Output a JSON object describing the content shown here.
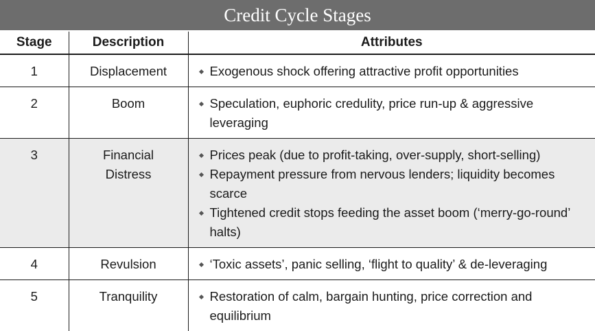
{
  "title": "Credit Cycle Stages",
  "headers": {
    "stage": "Stage",
    "description": "Description",
    "attributes": "Attributes"
  },
  "rows": [
    {
      "stage": "1",
      "description": [
        "Displacement"
      ],
      "shaded": false,
      "attributes": [
        "Exogenous shock offering attractive profit opportunities"
      ]
    },
    {
      "stage": "2",
      "description": [
        "Boom"
      ],
      "shaded": false,
      "attributes": [
        "Speculation, euphoric credulity, price run-up & aggressive leveraging"
      ]
    },
    {
      "stage": "3",
      "description": [
        "Financial",
        "Distress"
      ],
      "shaded": true,
      "attributes": [
        "Prices peak (due to profit-taking, over-supply, short-selling)",
        "Repayment pressure from nervous lenders; liquidity becomes scarce",
        "Tightened credit stops feeding the asset boom (‘merry-go-round’ halts)"
      ]
    },
    {
      "stage": "4",
      "description": [
        "Revulsion"
      ],
      "shaded": false,
      "attributes": [
        "‘Toxic assets’, panic selling, ‘flight to quality’ & de-leveraging"
      ]
    },
    {
      "stage": "5",
      "description": [
        "Tranquility"
      ],
      "shaded": false,
      "attributes": [
        "Restoration of calm, bargain hunting, price correction and equilibrium"
      ]
    }
  ]
}
